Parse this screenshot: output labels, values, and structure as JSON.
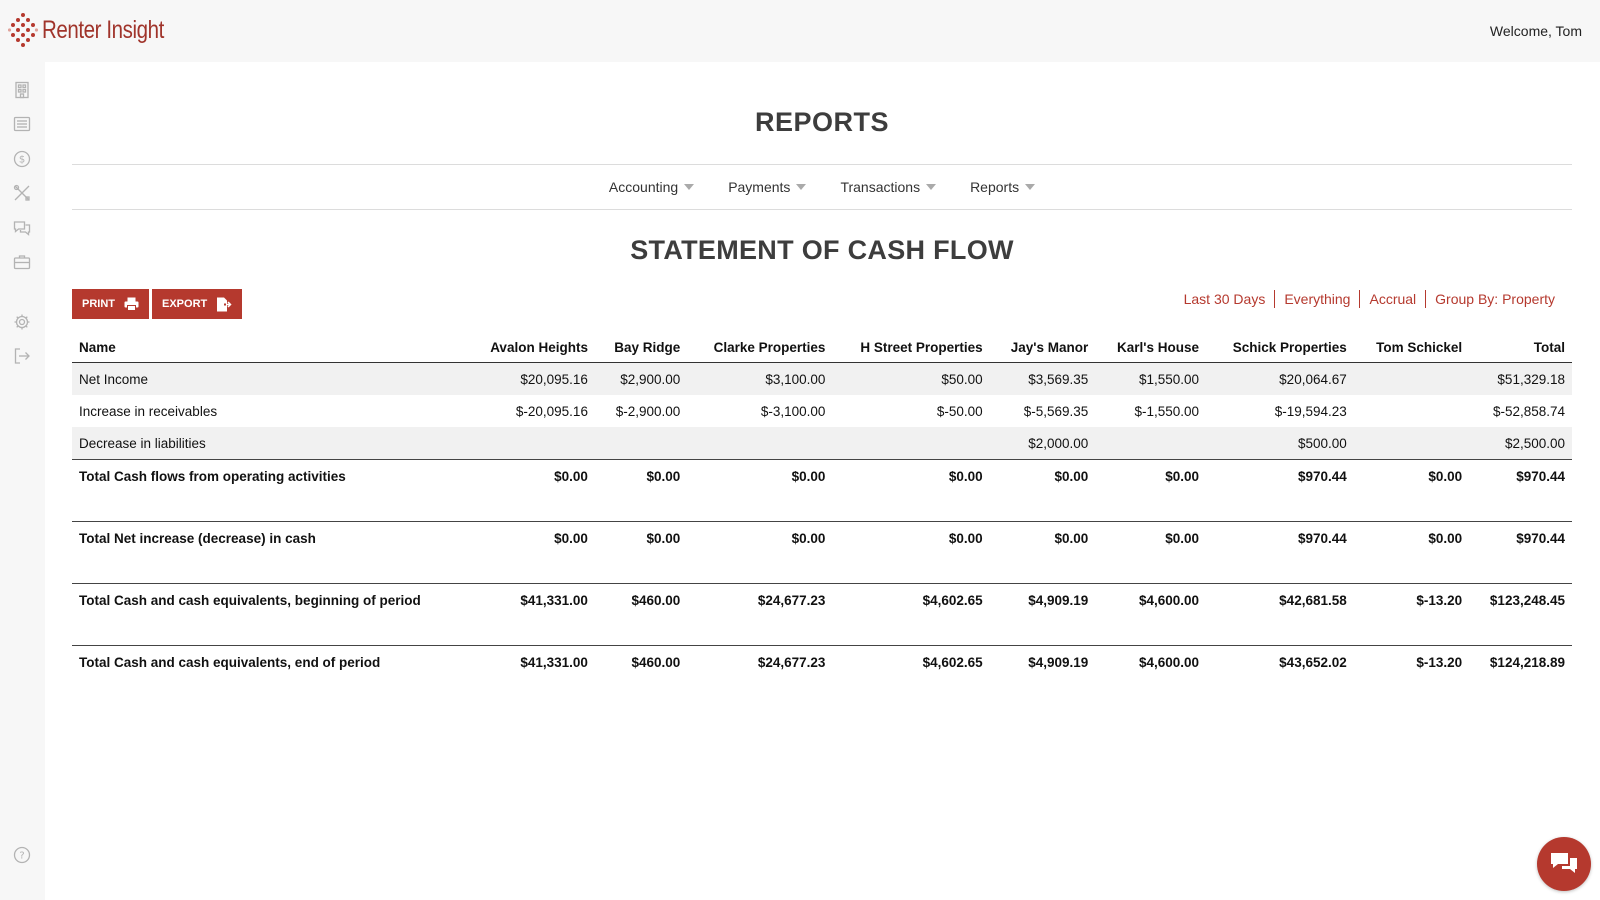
{
  "app": {
    "name": "Renter Insight",
    "welcome": "Welcome, Tom"
  },
  "sidebar": {
    "items": [
      {
        "icon": "building-icon"
      },
      {
        "icon": "list-icon"
      },
      {
        "icon": "dollar-icon"
      },
      {
        "icon": "tools-icon"
      },
      {
        "icon": "chat-icon"
      },
      {
        "icon": "briefcase-icon"
      },
      {
        "icon": "gear-icon"
      },
      {
        "icon": "logout-icon"
      },
      {
        "icon": "help-icon"
      }
    ]
  },
  "page": {
    "title": "REPORTS"
  },
  "menu": {
    "items": [
      {
        "label": "Accounting"
      },
      {
        "label": "Payments"
      },
      {
        "label": "Transactions"
      },
      {
        "label": "Reports"
      }
    ]
  },
  "report": {
    "title": "STATEMENT OF CASH FLOW",
    "print_label": "PRINT",
    "export_label": "EXPORT",
    "filters": [
      "Last 30 Days",
      "Everything",
      "Accrual",
      "Group By: Property"
    ]
  },
  "table": {
    "columns": [
      "Name",
      "Avalon Heights",
      "Bay Ridge",
      "Clarke Properties",
      "H Street Properties",
      "Jay's Manor",
      "Karl's House",
      "Schick Properties",
      "Tom Schickel",
      "Total"
    ],
    "rows": [
      [
        "Net Income",
        "$20,095.16",
        "$2,900.00",
        "$3,100.00",
        "$50.00",
        "$3,569.35",
        "$1,550.00",
        "$20,064.67",
        "",
        "$51,329.18"
      ],
      [
        "Increase in receivables",
        "$-20,095.16",
        "$-2,900.00",
        "$-3,100.00",
        "$-50.00",
        "$-5,569.35",
        "$-1,550.00",
        "$-19,594.23",
        "",
        "$-52,858.74"
      ],
      [
        "Decrease in liabilities",
        "",
        "",
        "",
        "",
        "$2,000.00",
        "",
        "$500.00",
        "",
        "$2,500.00"
      ],
      [
        "Total Cash flows from operating activities",
        "$0.00",
        "$0.00",
        "$0.00",
        "$0.00",
        "$0.00",
        "$0.00",
        "$970.44",
        "$0.00",
        "$970.44"
      ],
      [
        "Total Net increase (decrease) in cash",
        "$0.00",
        "$0.00",
        "$0.00",
        "$0.00",
        "$0.00",
        "$0.00",
        "$970.44",
        "$0.00",
        "$970.44"
      ],
      [
        "Total Cash and cash equivalents, beginning of period",
        "$41,331.00",
        "$460.00",
        "$24,677.23",
        "$4,602.65",
        "$4,909.19",
        "$4,600.00",
        "$42,681.58",
        "$-13.20",
        "$123,248.45"
      ],
      [
        "Total Cash and cash equivalents, end of period",
        "$41,331.00",
        "$460.00",
        "$24,677.23",
        "$4,602.65",
        "$4,909.19",
        "$4,600.00",
        "$43,652.02",
        "$-13.20",
        "$124,218.89"
      ]
    ]
  },
  "colors": {
    "accent": "#b5392e",
    "sidebar_bg": "#f7f7f7",
    "shade_row": "#f1f1f1"
  }
}
